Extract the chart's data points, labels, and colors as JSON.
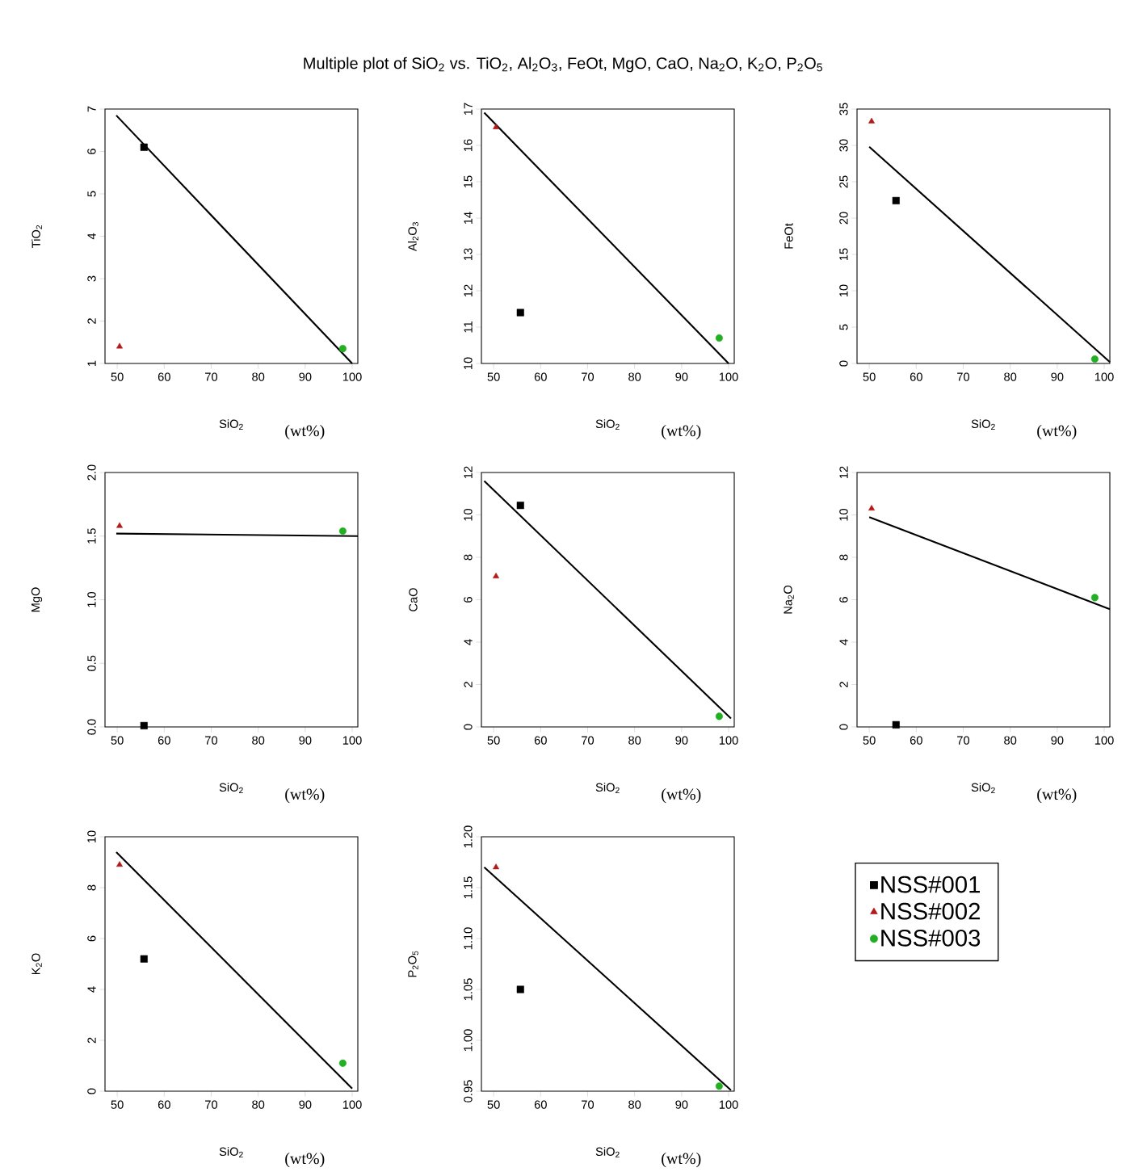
{
  "chart_data": [
    {
      "type": "scatter",
      "title": "Multiple plot of SiO$_{2}$ vs. TiO$_{2}$, Al$_{2}$O$_{3}$, FeOt, MgO, CaO, Na$_{2}$O, K$_{2}$O, P$_{2}$O$_{5}$",
      "xlabel": "SiO$_{2}$",
      "ylabel": "TiO$_{2}$",
      "annotations": [
        "(wt%)"
      ],
      "xlim": [
        47.4,
        101.2
      ],
      "ylim": [
        1,
        7
      ],
      "xticks": [
        50,
        60,
        70,
        80,
        90,
        100
      ],
      "yticks": [
        1,
        2,
        3,
        4,
        5,
        6,
        7
      ],
      "series": [
        {
          "color": "#000000",
          "marker": "square",
          "x": [
            55.7
          ],
          "values": [
            6.1
          ]
        },
        {
          "color": "#b01c1c",
          "marker": "triangle",
          "x": [
            50.5
          ],
          "values": [
            1.4
          ]
        },
        {
          "color": "#22b022",
          "marker": "circle",
          "x": [
            98
          ],
          "values": [
            1.35
          ]
        },
        {
          "type": "line",
          "color": "#000000",
          "x": [
            49.8,
            100
          ],
          "values": [
            6.85,
            1.0
          ]
        }
      ]
    },
    {
      "type": "scatter",
      "xlabel": "SiO$_{2}$",
      "ylabel": "Al$_{2}$O$_{3}$",
      "annotations": [
        "(wt%)"
      ],
      "xlim": [
        47.4,
        101.2
      ],
      "ylim": [
        10,
        17
      ],
      "xticks": [
        50,
        60,
        70,
        80,
        90,
        100
      ],
      "yticks": [
        10,
        11,
        12,
        13,
        14,
        15,
        16,
        17
      ],
      "series": [
        {
          "color": "#000000",
          "marker": "square",
          "x": [
            55.7
          ],
          "values": [
            11.4
          ]
        },
        {
          "color": "#b01c1c",
          "marker": "triangle",
          "x": [
            50.5
          ],
          "values": [
            16.5
          ]
        },
        {
          "color": "#22b022",
          "marker": "circle",
          "x": [
            98
          ],
          "values": [
            10.7
          ]
        },
        {
          "type": "line",
          "color": "#000000",
          "x": [
            48,
            100
          ],
          "values": [
            16.9,
            10.0
          ]
        }
      ]
    },
    {
      "type": "scatter",
      "xlabel": "SiO$_{2}$",
      "ylabel": "FeOt",
      "annotations": [
        "(wt%)"
      ],
      "xlim": [
        47.4,
        101.2
      ],
      "ylim": [
        0,
        35
      ],
      "xticks": [
        50,
        60,
        70,
        80,
        90,
        100
      ],
      "yticks": [
        0,
        5,
        10,
        15,
        20,
        25,
        30,
        35
      ],
      "series": [
        {
          "color": "#000000",
          "marker": "square",
          "x": [
            55.7
          ],
          "values": [
            22.4
          ]
        },
        {
          "color": "#b01c1c",
          "marker": "triangle",
          "x": [
            50.5
          ],
          "values": [
            33.3
          ]
        },
        {
          "color": "#22b022",
          "marker": "circle",
          "x": [
            98
          ],
          "values": [
            0.6
          ]
        },
        {
          "type": "line",
          "color": "#000000",
          "x": [
            50,
            101.2
          ],
          "values": [
            29.8,
            0.2
          ]
        }
      ]
    },
    {
      "type": "scatter",
      "xlabel": "SiO$_{2}$",
      "ylabel": "MgO",
      "annotations": [
        "(wt%)"
      ],
      "xlim": [
        47.4,
        101.2
      ],
      "ylim": [
        0,
        2
      ],
      "xticks": [
        50,
        60,
        70,
        80,
        90,
        100
      ],
      "yticks": [
        {
          "value": 0,
          "label": "0.0"
        },
        0.5,
        {
          "value": 1,
          "label": "1.0"
        },
        1.5,
        {
          "value": 2,
          "label": "2.0"
        }
      ],
      "series": [
        {
          "color": "#000000",
          "marker": "square",
          "x": [
            55.7
          ],
          "values": [
            0.01
          ]
        },
        {
          "color": "#b01c1c",
          "marker": "triangle",
          "x": [
            50.5
          ],
          "values": [
            1.58
          ]
        },
        {
          "color": "#22b022",
          "marker": "circle",
          "x": [
            98
          ],
          "values": [
            1.54
          ]
        },
        {
          "type": "line",
          "color": "#000000",
          "x": [
            49.8,
            101.2
          ],
          "values": [
            1.52,
            1.5
          ]
        }
      ]
    },
    {
      "type": "scatter",
      "xlabel": "SiO$_{2}$",
      "ylabel": "CaO",
      "annotations": [
        "(wt%)"
      ],
      "xlim": [
        47.4,
        101.2
      ],
      "ylim": [
        0,
        12
      ],
      "xticks": [
        50,
        60,
        70,
        80,
        90,
        100
      ],
      "yticks": [
        0,
        2,
        4,
        6,
        8,
        10,
        12
      ],
      "series": [
        {
          "color": "#000000",
          "marker": "square",
          "x": [
            55.7
          ],
          "values": [
            10.45
          ]
        },
        {
          "color": "#b01c1c",
          "marker": "triangle",
          "x": [
            50.5
          ],
          "values": [
            7.1
          ]
        },
        {
          "color": "#22b022",
          "marker": "circle",
          "x": [
            98
          ],
          "values": [
            0.5
          ]
        },
        {
          "type": "line",
          "color": "#000000",
          "x": [
            48,
            100.5
          ],
          "values": [
            11.6,
            0.4
          ]
        }
      ]
    },
    {
      "type": "scatter",
      "xlabel": "SiO$_{2}$",
      "ylabel": "Na$_{2}$O",
      "annotations": [
        "(wt%)"
      ],
      "xlim": [
        47.4,
        101.2
      ],
      "ylim": [
        0,
        12
      ],
      "xticks": [
        50,
        60,
        70,
        80,
        90,
        100
      ],
      "yticks": [
        0,
        2,
        4,
        6,
        8,
        10,
        12
      ],
      "series": [
        {
          "color": "#000000",
          "marker": "square",
          "x": [
            55.7
          ],
          "values": [
            0.1
          ]
        },
        {
          "color": "#b01c1c",
          "marker": "triangle",
          "x": [
            50.5
          ],
          "values": [
            10.3
          ]
        },
        {
          "color": "#22b022",
          "marker": "circle",
          "x": [
            98
          ],
          "values": [
            6.1
          ]
        },
        {
          "type": "line",
          "color": "#000000",
          "x": [
            50,
            101.2
          ],
          "values": [
            9.9,
            5.55
          ]
        }
      ]
    },
    {
      "type": "scatter",
      "xlabel": "SiO$_{2}$",
      "ylabel": "K$_{2}$O",
      "annotations": [
        "(wt%)"
      ],
      "xlim": [
        47.4,
        101.2
      ],
      "ylim": [
        0,
        10
      ],
      "xticks": [
        50,
        60,
        70,
        80,
        90,
        100
      ],
      "yticks": [
        0,
        2,
        4,
        6,
        8,
        10
      ],
      "series": [
        {
          "color": "#000000",
          "marker": "square",
          "x": [
            55.7
          ],
          "values": [
            5.2
          ]
        },
        {
          "color": "#b01c1c",
          "marker": "triangle",
          "x": [
            50.5
          ],
          "values": [
            8.9
          ]
        },
        {
          "color": "#22b022",
          "marker": "circle",
          "x": [
            98
          ],
          "values": [
            1.1
          ]
        },
        {
          "type": "line",
          "color": "#000000",
          "x": [
            49.8,
            100
          ],
          "values": [
            9.4,
            0.1
          ]
        }
      ]
    },
    {
      "type": "scatter",
      "xlabel": "SiO$_{2}$",
      "ylabel": "P$_{2}$O$_{5}$",
      "annotations": [
        "(wt%)"
      ],
      "legend": "right",
      "xlim": [
        47.4,
        101.2
      ],
      "ylim": [
        0.95,
        1.2
      ],
      "xticks": [
        50,
        60,
        70,
        80,
        90,
        100
      ],
      "yticks": [
        0.95,
        {
          "value": 1,
          "label": "1.00"
        },
        1.05,
        {
          "value": 1.1,
          "label": "1.10"
        },
        1.15,
        {
          "value": 1.2,
          "label": "1.20"
        }
      ],
      "series": [
        {
          "name": "NSS#001",
          "color": "#000000",
          "marker": "square",
          "x": [
            55.7
          ],
          "values": [
            1.05
          ]
        },
        {
          "name": "NSS#002",
          "color": "#b01c1c",
          "marker": "triangle",
          "x": [
            50.5
          ],
          "values": [
            1.17
          ]
        },
        {
          "name": "NSS#003",
          "color": "#22b022",
          "marker": "circle",
          "x": [
            98
          ],
          "values": [
            0.955
          ]
        },
        {
          "type": "line",
          "color": "#000000",
          "x": [
            48,
            100.5
          ],
          "values": [
            1.17,
            0.951
          ]
        }
      ]
    }
  ]
}
